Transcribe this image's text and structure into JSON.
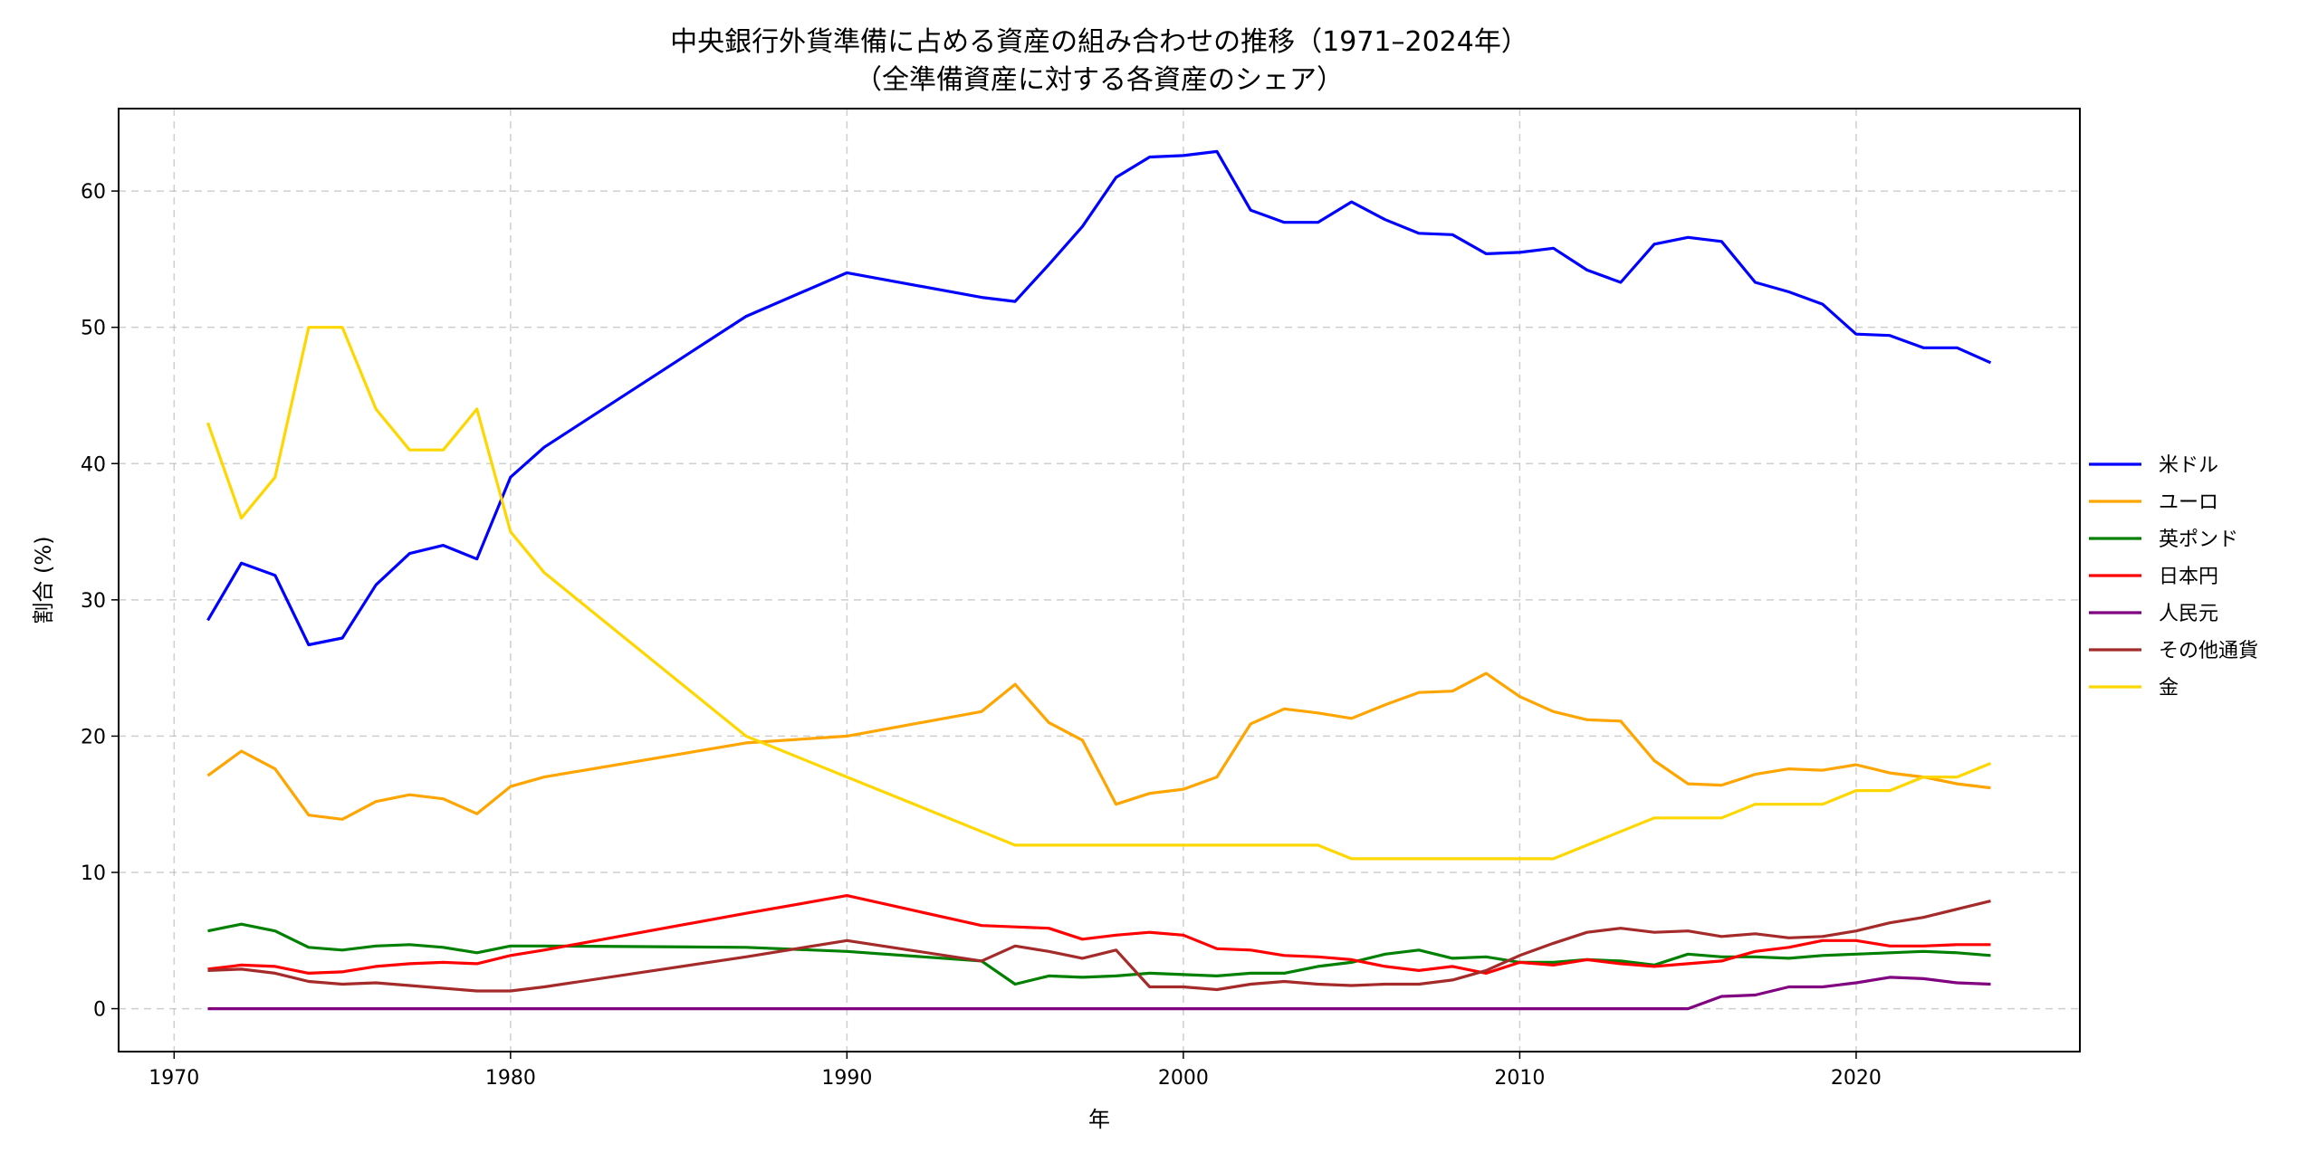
{
  "chart_data": {
    "type": "line",
    "title": "中央銀行外貨準備に占める資産の組み合わせの推移（1971–2024年）",
    "subtitle": "（全準備資産に対する各資産のシェア）",
    "xlabel": "年",
    "ylabel": "割合 (%)",
    "xlim": [
      1968.35,
      2026.65
    ],
    "ylim": [
      -3.15,
      66.05
    ],
    "xticks": [
      1970,
      1980,
      1990,
      2000,
      2010,
      2020
    ],
    "yticks": [
      0,
      10,
      20,
      30,
      40,
      50,
      60
    ],
    "grid": true,
    "legend_placement": "right-outside",
    "x": [
      1971,
      1972,
      1973,
      1974,
      1975,
      1976,
      1977,
      1978,
      1979,
      1980,
      1981,
      1987,
      1990,
      1994,
      1995,
      1996,
      1997,
      1998,
      1999,
      2000,
      2001,
      2002,
      2003,
      2004,
      2005,
      2006,
      2007,
      2008,
      2009,
      2010,
      2011,
      2012,
      2013,
      2014,
      2015,
      2016,
      2017,
      2018,
      2019,
      2020,
      2021,
      2022,
      2023,
      2024
    ],
    "series": [
      {
        "name": "米ドル",
        "color": "#0000ff",
        "values": [
          28.5,
          32.7,
          31.8,
          26.7,
          27.2,
          31.1,
          33.4,
          34.0,
          33.0,
          39.0,
          41.2,
          50.8,
          54.0,
          52.2,
          51.9,
          54.6,
          57.4,
          61.0,
          62.5,
          62.6,
          62.9,
          58.6,
          57.7,
          57.7,
          59.2,
          57.9,
          56.9,
          56.8,
          55.4,
          55.5,
          55.8,
          54.2,
          53.3,
          56.1,
          56.6,
          56.3,
          53.3,
          52.6,
          51.7,
          49.5,
          49.4,
          48.5,
          48.5,
          47.4
        ]
      },
      {
        "name": "ユーロ",
        "color": "#ffa500",
        "values": [
          17.1,
          18.9,
          17.6,
          14.2,
          13.9,
          15.2,
          15.7,
          15.4,
          14.3,
          16.3,
          17.0,
          19.5,
          20.0,
          21.8,
          23.8,
          21.0,
          19.7,
          15.0,
          15.8,
          16.1,
          17.0,
          20.9,
          22.0,
          21.7,
          21.3,
          22.3,
          23.2,
          23.3,
          24.6,
          22.9,
          21.8,
          21.2,
          21.1,
          18.2,
          16.5,
          16.4,
          17.2,
          17.6,
          17.5,
          17.9,
          17.3,
          17.0,
          16.5,
          16.2
        ]
      },
      {
        "name": "英ポンド",
        "color": "#008000",
        "values": [
          5.7,
          6.2,
          5.7,
          4.5,
          4.3,
          4.6,
          4.7,
          4.5,
          4.1,
          4.6,
          4.6,
          4.5,
          4.2,
          3.5,
          1.8,
          2.4,
          2.3,
          2.4,
          2.6,
          2.5,
          2.4,
          2.6,
          2.6,
          3.1,
          3.4,
          4.0,
          4.3,
          3.7,
          3.8,
          3.4,
          3.4,
          3.6,
          3.5,
          3.2,
          4.0,
          3.8,
          3.8,
          3.7,
          3.9,
          4.0,
          4.1,
          4.2,
          4.1,
          3.9
        ]
      },
      {
        "name": "日本円",
        "color": "#ff0000",
        "values": [
          2.9,
          3.2,
          3.1,
          2.6,
          2.7,
          3.1,
          3.3,
          3.4,
          3.3,
          3.9,
          4.3,
          7.0,
          8.3,
          6.1,
          6.0,
          5.9,
          5.1,
          5.4,
          5.6,
          5.4,
          4.4,
          4.3,
          3.9,
          3.8,
          3.6,
          3.1,
          2.8,
          3.1,
          2.6,
          3.4,
          3.2,
          3.6,
          3.3,
          3.1,
          3.3,
          3.5,
          4.2,
          4.5,
          5.0,
          5.0,
          4.6,
          4.6,
          4.7,
          4.7
        ]
      },
      {
        "name": "人民元",
        "color": "#800080",
        "values": [
          0,
          0,
          0,
          0,
          0,
          0,
          0,
          0,
          0,
          0,
          0,
          0,
          0,
          0,
          0,
          0,
          0,
          0,
          0,
          0,
          0,
          0,
          0,
          0,
          0,
          0,
          0,
          0,
          0,
          0,
          0,
          0,
          0,
          0,
          0,
          0.9,
          1.0,
          1.6,
          1.6,
          1.9,
          2.3,
          2.2,
          1.9,
          1.8
        ]
      },
      {
        "name": "その他通貨",
        "color": "#a52a2a",
        "values": [
          2.8,
          2.9,
          2.6,
          2.0,
          1.8,
          1.9,
          1.7,
          1.5,
          1.3,
          1.3,
          1.6,
          3.8,
          5.0,
          3.5,
          4.6,
          4.2,
          3.7,
          4.3,
          1.6,
          1.6,
          1.4,
          1.8,
          2.0,
          1.8,
          1.7,
          1.8,
          1.8,
          2.1,
          2.8,
          3.9,
          4.8,
          5.6,
          5.9,
          5.6,
          5.7,
          5.3,
          5.5,
          5.2,
          5.3,
          5.7,
          6.3,
          6.7,
          7.3,
          7.9
        ]
      },
      {
        "name": "金",
        "color": "#ffd700",
        "values": [
          43,
          36,
          39,
          50,
          50,
          44,
          41,
          41,
          44,
          35,
          32,
          20,
          17,
          13,
          12,
          12,
          12,
          12,
          12,
          12,
          12,
          12,
          12,
          12,
          11,
          11,
          11,
          11,
          11,
          11,
          11,
          12,
          13,
          14,
          14,
          14,
          15,
          15,
          15,
          16,
          16,
          17,
          17,
          18
        ]
      }
    ]
  }
}
